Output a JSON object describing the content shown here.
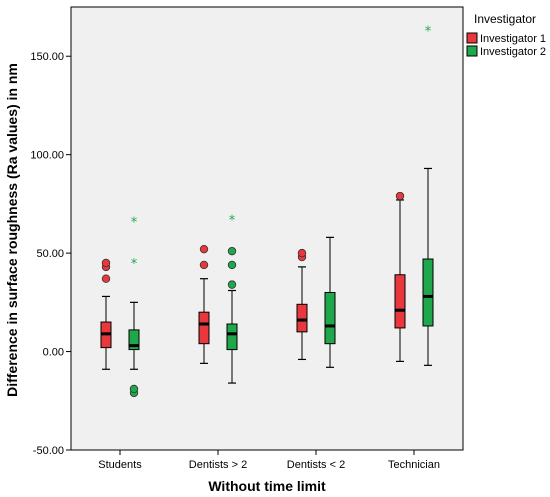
{
  "chart_data": {
    "type": "boxplot",
    "xlabel": "Without time limit",
    "ylabel": "Difference in surface roughness (Ra values) in nm",
    "ylim": [
      -50,
      175
    ],
    "yticks": [
      -50,
      0,
      50,
      100,
      150
    ],
    "ytick_labels": [
      "-50.00",
      "0.00",
      "50.00",
      "100.00",
      "150.00"
    ],
    "categories": [
      "Students",
      "Dentists  > 2",
      "Dentists < 2",
      "Technician"
    ],
    "grid": false,
    "legend": {
      "title": "Investigator",
      "position": "right"
    },
    "series": [
      {
        "name": "Investigator 1",
        "color": "#e8383d",
        "boxes": [
          {
            "whisker_low": -9,
            "q1": 2,
            "median": 9,
            "q3": 15,
            "whisker_high": 28,
            "outliers": [
              37,
              43,
              45
            ],
            "extremes": []
          },
          {
            "whisker_low": -6,
            "q1": 4,
            "median": 14,
            "q3": 20,
            "whisker_high": 37,
            "outliers": [
              44,
              52
            ],
            "extremes": []
          },
          {
            "whisker_low": -4,
            "q1": 10,
            "median": 16,
            "q3": 24,
            "whisker_high": 43,
            "outliers": [
              48,
              50
            ],
            "extremes": []
          },
          {
            "whisker_low": -5,
            "q1": 12,
            "median": 21,
            "q3": 39,
            "whisker_high": 77,
            "outliers": [
              79
            ],
            "extremes": []
          }
        ]
      },
      {
        "name": "Investigator 2",
        "color": "#1ea84b",
        "boxes": [
          {
            "whisker_low": -9,
            "q1": 1,
            "median": 3,
            "q3": 11,
            "whisker_high": 25,
            "outliers": [
              -21,
              -19
            ],
            "extremes": [
              45,
              66
            ]
          },
          {
            "whisker_low": -16,
            "q1": 1,
            "median": 9,
            "q3": 14,
            "whisker_high": 31,
            "outliers": [
              34,
              44,
              51
            ],
            "extremes": [
              67
            ]
          },
          {
            "whisker_low": -8,
            "q1": 4,
            "median": 13,
            "q3": 30,
            "whisker_high": 58,
            "outliers": [],
            "extremes": []
          },
          {
            "whisker_low": -7,
            "q1": 13,
            "median": 28,
            "q3": 47,
            "whisker_high": 93,
            "outliers": [],
            "extremes": [
              163
            ]
          }
        ]
      }
    ]
  }
}
